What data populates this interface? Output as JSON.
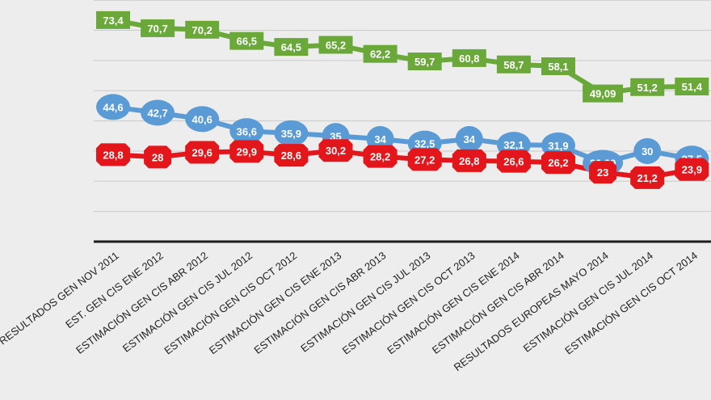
{
  "chart_data": {
    "type": "line",
    "title": "",
    "xlabel": "",
    "ylabel": "",
    "ylim": [
      0,
      80
    ],
    "grid": true,
    "categories": [
      "RESULTADOS GEN NOV 2011",
      "EST. GEN CIS ENE 2012",
      "ESTIMACIÓN GEN CIS ABR 2012",
      "ESTIMACIÓN GEN CIS JUL 2012",
      "ESTIMACIÓN GEN CIS OCT 2012",
      "ESTIMACIÓN GEN CIS ENE 2013",
      "ESTIMACIÓN GEN CIS ABR 2013",
      "ESTIMACIÓN GEN CIS JUL 2013",
      "ESTIMACIÓN GEN CIS OCT 2013",
      "ESTIMACIÓN GEN CIS ENE 2014",
      "ESTIMACIÓN GEN CIS ABR 2014",
      "RESULTADOS EUROPEAS MAYO 2014",
      "ESTIMACIÓN GEN CIS JUL 2014",
      "ESTIMACIÓN GEN CIS OCT 2014"
    ],
    "series": [
      {
        "key": "green",
        "color": "#6aa83a",
        "marker": "square",
        "values": [
          73.4,
          70.7,
          70.2,
          66.5,
          64.5,
          65.2,
          62.2,
          59.7,
          60.8,
          58.7,
          58.1,
          49.09,
          51.2,
          51.4
        ],
        "labels": [
          "73,4",
          "70,7",
          "70,2",
          "66,5",
          "64,5",
          "65,2",
          "62,2",
          "59,7",
          "60,8",
          "58,7",
          "58,1",
          "49,09",
          "51,2",
          "51,4"
        ]
      },
      {
        "key": "blue",
        "color": "#5b9bd5",
        "marker": "circle",
        "values": [
          44.6,
          42.7,
          40.6,
          36.6,
          35.9,
          35,
          34,
          32.5,
          34,
          32.1,
          31.9,
          26.09,
          30,
          27.5
        ],
        "labels": [
          "44,6",
          "42,7",
          "40,6",
          "36,6",
          "35,9",
          "35",
          "34",
          "32,5",
          "34",
          "32,1",
          "31,9",
          "26,09",
          "30",
          "27,5"
        ]
      },
      {
        "key": "red",
        "color": "#e2161b",
        "marker": "octagon",
        "values": [
          28.8,
          28,
          29.6,
          29.9,
          28.6,
          30.2,
          28.2,
          27.2,
          26.8,
          26.6,
          26.2,
          23,
          21.2,
          23.9
        ],
        "labels": [
          "28,8",
          "28",
          "29,6",
          "29,9",
          "28,6",
          "30,2",
          "28,2",
          "27,2",
          "26,8",
          "26,6",
          "26,2",
          "23",
          "21,2",
          "23,9"
        ]
      }
    ]
  }
}
